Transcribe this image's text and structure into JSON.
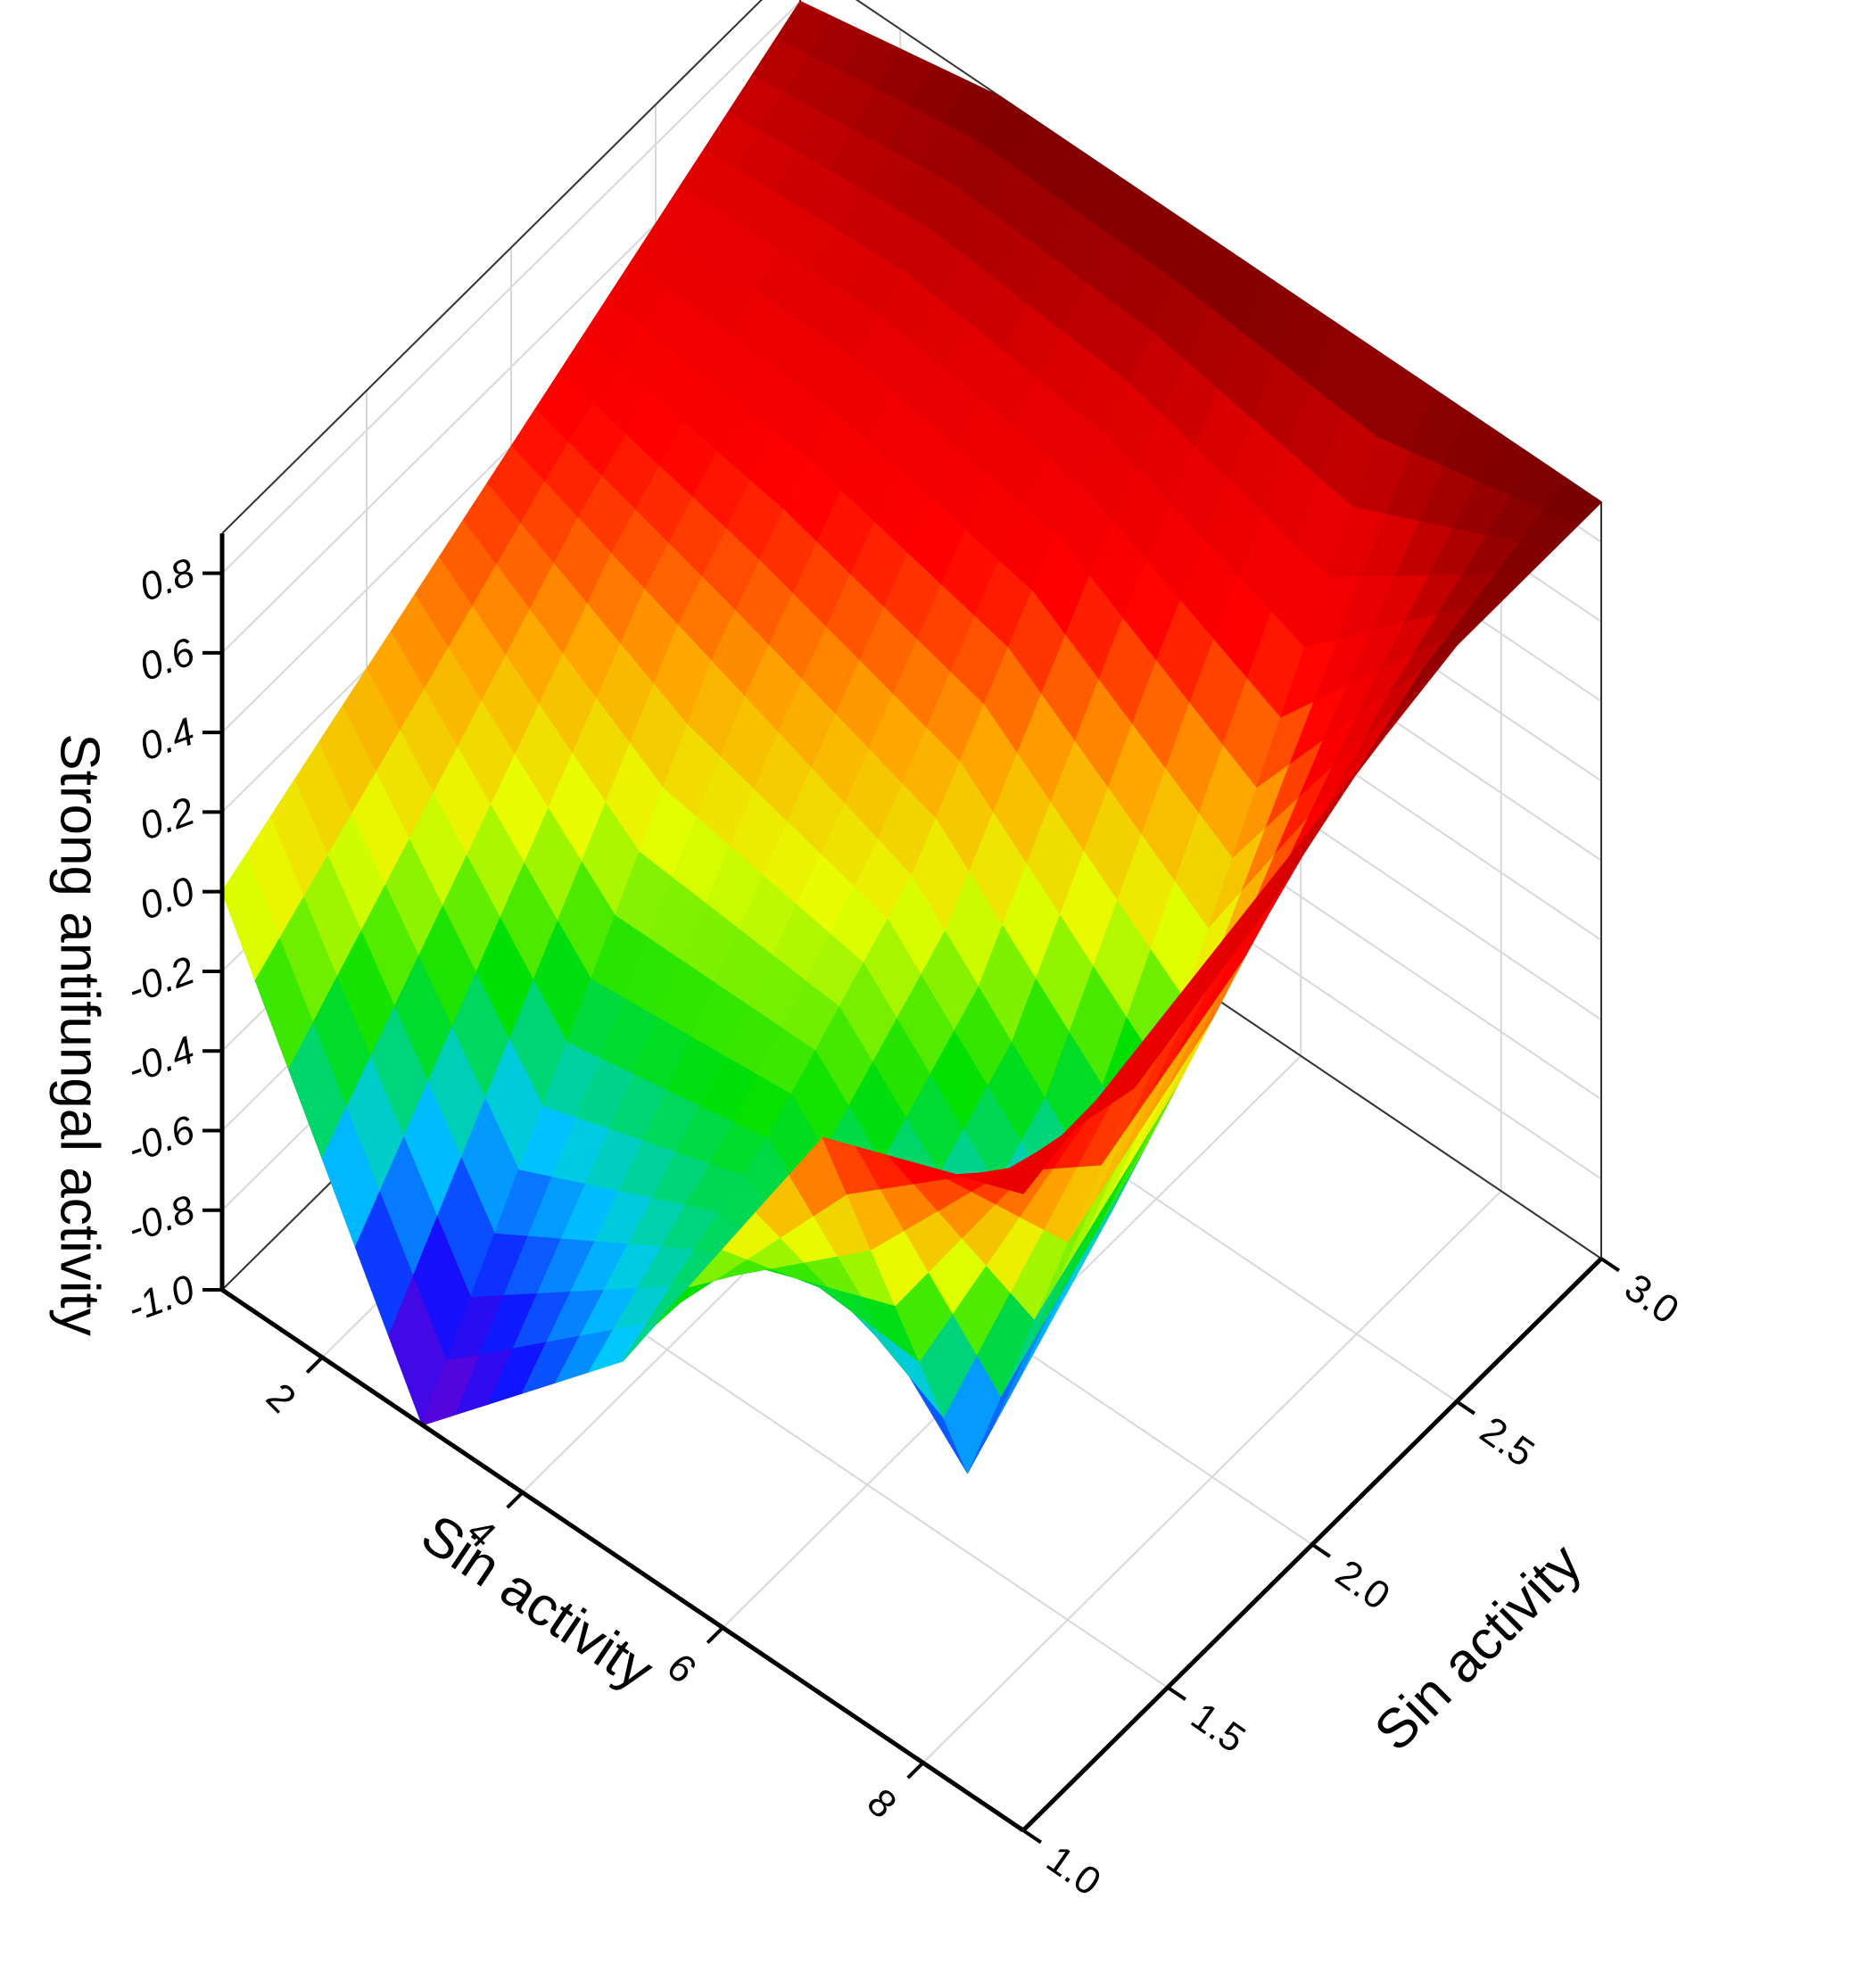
{
  "chart_data": {
    "type": "surface",
    "xlabel": "Sin activity",
    "ylabel": "Sin activity",
    "zlabel": "Strong antifungal activity",
    "x": [
      1,
      3,
      5,
      7,
      9
    ],
    "y": [
      1,
      1.5,
      2,
      2.5,
      3
    ],
    "z": [
      [
        0.0,
        0.2,
        0.4,
        0.6,
        0.8
      ],
      [
        -1.0,
        -0.4,
        0.2,
        0.6,
        0.9
      ],
      [
        -0.5,
        -0.3,
        0.0,
        0.5,
        0.9
      ],
      [
        0.4,
        -0.8,
        -0.5,
        0.2,
        0.9
      ],
      [
        0.6,
        0.7,
        0.8,
        0.9,
        0.9
      ]
    ],
    "xlim": [
      1,
      9
    ],
    "ylim": [
      1,
      3
    ],
    "zlim": [
      -1,
      0.9
    ],
    "xticks": [
      2,
      4,
      6,
      8
    ],
    "yticks": [
      {
        "value": 1,
        "label": "1.0"
      },
      {
        "value": 1.5,
        "label": "1.5"
      },
      {
        "value": 2,
        "label": "2.0"
      },
      {
        "value": 2.5,
        "label": "2.5"
      },
      {
        "value": 3,
        "label": "3.0"
      }
    ],
    "zticks": [
      {
        "value": -1,
        "label": "-1.0"
      },
      -0.8,
      -0.6,
      -0.4,
      -0.2,
      {
        "value": 0,
        "label": "0.0"
      },
      0.2,
      0.4,
      0.6,
      0.8
    ],
    "colormap": [
      "#7a00c8",
      "#1010ff",
      "#00c8ff",
      "#00e000",
      "#e8ff00",
      "#ffa000",
      "#ff0000",
      "#e00000",
      "#780000"
    ],
    "grid": true
  }
}
